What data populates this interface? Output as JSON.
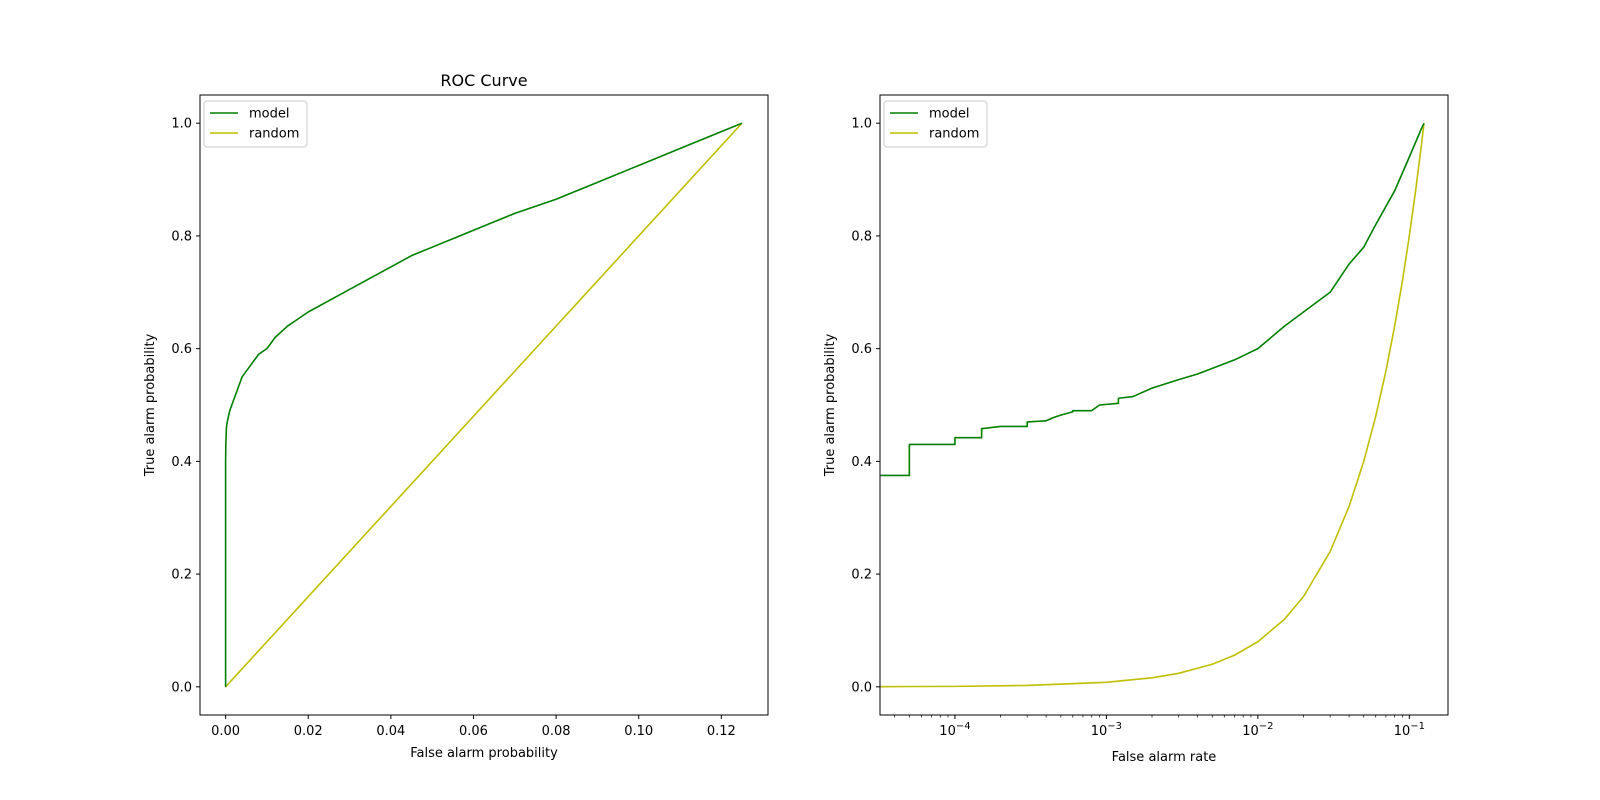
{
  "colors": {
    "model": "#008000",
    "random": "#bfbf00",
    "axes": "#000000",
    "legend_border": "#cccccc"
  },
  "chart_data": [
    {
      "type": "line",
      "title": "ROC Curve",
      "xlabel": "False alarm probability",
      "ylabel": "True alarm probability",
      "xscale": "linear",
      "xlim": [
        -0.0062,
        0.1313
      ],
      "ylim": [
        -0.05,
        1.05
      ],
      "xticks": [
        0.0,
        0.02,
        0.04,
        0.06,
        0.08,
        0.1,
        0.12
      ],
      "xtick_labels": [
        "0.00",
        "0.02",
        "0.04",
        "0.06",
        "0.08",
        "0.10",
        "0.12"
      ],
      "yticks": [
        0.0,
        0.2,
        0.4,
        0.6,
        0.8,
        1.0
      ],
      "ytick_labels": [
        "0.0",
        "0.2",
        "0.4",
        "0.6",
        "0.8",
        "1.0"
      ],
      "legend": {
        "position": "upper-left",
        "entries": [
          "model",
          "random"
        ]
      },
      "series": [
        {
          "name": "model",
          "x": [
            0.0,
            0.0,
            0.0,
            5e-05,
            0.0001,
            0.0002,
            0.0004,
            0.0007,
            0.001,
            0.0015,
            0.002,
            0.003,
            0.004,
            0.005,
            0.006,
            0.008,
            0.01,
            0.012,
            0.015,
            0.018,
            0.02,
            0.025,
            0.03,
            0.035,
            0.04,
            0.045,
            0.05,
            0.055,
            0.06,
            0.07,
            0.08,
            0.09,
            0.1,
            0.11,
            0.12,
            0.125
          ],
          "y": [
            0.0,
            0.37,
            0.4,
            0.43,
            0.44,
            0.46,
            0.47,
            0.48,
            0.49,
            0.5,
            0.51,
            0.53,
            0.55,
            0.56,
            0.57,
            0.59,
            0.6,
            0.62,
            0.64,
            0.655,
            0.665,
            0.685,
            0.705,
            0.725,
            0.745,
            0.765,
            0.78,
            0.795,
            0.81,
            0.84,
            0.865,
            0.895,
            0.925,
            0.955,
            0.985,
            1.0
          ]
        },
        {
          "name": "random",
          "x": [
            0.0,
            0.125
          ],
          "y": [
            0.0,
            1.0
          ]
        }
      ]
    },
    {
      "type": "line",
      "title": "",
      "xlabel": "False alarm rate",
      "ylabel": "True alarm probability",
      "xscale": "log",
      "xlim": [
        3.2e-05,
        0.18
      ],
      "ylim": [
        -0.05,
        1.05
      ],
      "xticks": [
        0.0001,
        0.001,
        0.01,
        0.1
      ],
      "xtick_labels": [
        "10−4",
        "10−3",
        "10−2",
        "10−1"
      ],
      "yticks": [
        0.0,
        0.2,
        0.4,
        0.6,
        0.8,
        1.0
      ],
      "ytick_labels": [
        "0.0",
        "0.2",
        "0.4",
        "0.6",
        "0.8",
        "1.0"
      ],
      "legend": {
        "position": "upper-left",
        "entries": [
          "model",
          "random"
        ]
      },
      "series": [
        {
          "name": "model",
          "x": [
            3.2e-05,
            5e-05,
            5e-05,
            0.0001,
            0.0001,
            0.00015,
            0.00015,
            0.0002,
            0.0003,
            0.0003,
            0.0004,
            0.00045,
            0.0005,
            0.0006,
            0.0006,
            0.0008,
            0.0009,
            0.0012,
            0.0012,
            0.0015,
            0.002,
            0.003,
            0.004,
            0.005,
            0.007,
            0.01,
            0.015,
            0.02,
            0.03,
            0.04,
            0.05,
            0.06,
            0.08,
            0.1,
            0.12,
            0.125
          ],
          "y": [
            0.375,
            0.375,
            0.43,
            0.43,
            0.442,
            0.442,
            0.458,
            0.462,
            0.462,
            0.47,
            0.472,
            0.478,
            0.482,
            0.488,
            0.49,
            0.49,
            0.5,
            0.503,
            0.512,
            0.515,
            0.53,
            0.545,
            0.555,
            0.565,
            0.58,
            0.6,
            0.64,
            0.665,
            0.7,
            0.75,
            0.78,
            0.82,
            0.88,
            0.94,
            0.99,
            1.0
          ]
        },
        {
          "name": "random",
          "x": [
            3.2e-05,
            0.0001,
            0.0003,
            0.001,
            0.002,
            0.003,
            0.005,
            0.007,
            0.01,
            0.015,
            0.02,
            0.03,
            0.04,
            0.05,
            0.06,
            0.07,
            0.08,
            0.09,
            0.1,
            0.11,
            0.12,
            0.125
          ],
          "y": [
            0.0003,
            0.0008,
            0.0024,
            0.008,
            0.016,
            0.024,
            0.04,
            0.056,
            0.08,
            0.12,
            0.16,
            0.24,
            0.32,
            0.4,
            0.48,
            0.56,
            0.64,
            0.72,
            0.8,
            0.88,
            0.96,
            1.0
          ]
        }
      ]
    }
  ]
}
